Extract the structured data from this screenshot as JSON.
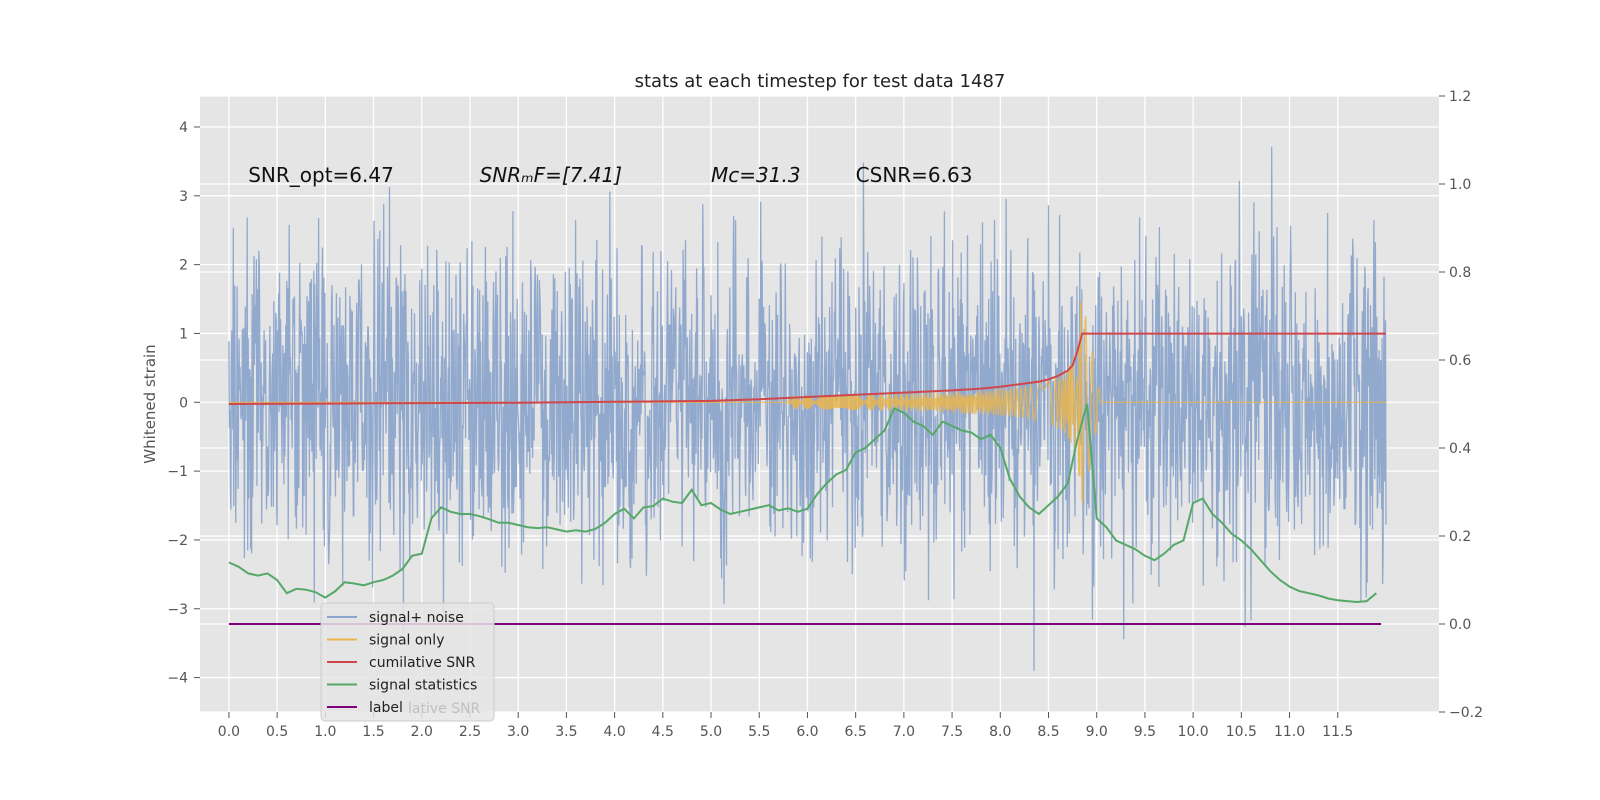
{
  "chart_data": {
    "type": "line",
    "title": "stats at each timestep for test data 1487",
    "xlabel": "",
    "ylabel": "Whitened strain",
    "xlim": [
      -0.3,
      12.55
    ],
    "ylim": [
      -4.5,
      4.45
    ],
    "y2lim": [
      -0.2,
      1.2
    ],
    "grid": true,
    "x_ticks": [
      0.0,
      0.5,
      1.0,
      1.5,
      2.0,
      2.5,
      3.0,
      3.5,
      4.0,
      4.5,
      5.0,
      5.5,
      6.0,
      6.5,
      7.0,
      7.5,
      8.0,
      8.5,
      9.0,
      9.5,
      10.0,
      10.5,
      11.0,
      11.5
    ],
    "x_tick_labels": [
      "0.0",
      "0.5",
      "1.0",
      "1.5",
      "2.0",
      "2.5",
      "3.0",
      "3.5",
      "4.0",
      "4.5",
      "5.0",
      "5.5",
      "6.0",
      "6.5",
      "7.0",
      "7.5",
      "8.0",
      "8.5",
      "9.0",
      "9.5",
      "10.0",
      "10.5",
      "11.0",
      "11.5"
    ],
    "y_ticks": [
      4,
      3,
      2,
      1,
      0,
      -1,
      -2,
      -3,
      -4
    ],
    "y_tick_labels": [
      "4",
      "3",
      "2",
      "1",
      "0",
      "−1",
      "−2",
      "−3",
      "−4"
    ],
    "y2_ticks": [
      1.2,
      1.0,
      0.8,
      0.6,
      0.4,
      0.2,
      0.0,
      -0.2
    ],
    "y2_tick_labels": [
      "1.2",
      "1.0",
      "0.8",
      "0.6",
      "0.4",
      "0.2",
      "0.0",
      "−0.2"
    ],
    "annotations": [
      {
        "name": "snr-opt",
        "text": "SNR_opt=6.47",
        "x": 0.2,
        "y": 3.2
      },
      {
        "name": "snr-mf",
        "text": "SNRₘF=[7.41]",
        "x": 2.6,
        "y": 3.2
      },
      {
        "name": "chirp-mass",
        "text": "Mᴄ=31.3",
        "x": 5.0,
        "y": 3.2
      },
      {
        "name": "csnr",
        "text": "CSNR=6.63",
        "x": 6.5,
        "y": 3.2
      }
    ],
    "series": [
      {
        "name": "signal+ noise",
        "axis": "left",
        "color": "#8da5cc",
        "style": "dense-noise",
        "x_range": [
          0.0,
          12.0
        ],
        "noise_sigma": 1.15,
        "clip": [
          -3.9,
          4.1
        ]
      },
      {
        "name": "signal only",
        "axis": "left",
        "color": "#e8b54d",
        "style": "chirp",
        "x_range": [
          0.0,
          12.0
        ],
        "merger_time": 8.85,
        "peak_amplitude": 1.55
      },
      {
        "name": "cumilative SNR",
        "axis": "right",
        "color": "#d0474b",
        "x": [
          0.0,
          1.0,
          2.0,
          3.0,
          4.0,
          5.0,
          5.5,
          6.0,
          6.5,
          7.0,
          7.5,
          7.8,
          8.0,
          8.2,
          8.4,
          8.5,
          8.6,
          8.7,
          8.75,
          8.8,
          8.85,
          9.0,
          10.0,
          11.0,
          12.0
        ],
        "values": [
          0.5,
          0.501,
          0.502,
          0.503,
          0.505,
          0.507,
          0.511,
          0.516,
          0.521,
          0.526,
          0.531,
          0.535,
          0.539,
          0.545,
          0.551,
          0.556,
          0.564,
          0.576,
          0.588,
          0.62,
          0.66,
          0.66,
          0.66,
          0.66,
          0.66
        ]
      },
      {
        "name": "signal statistics",
        "axis": "right",
        "color": "#55a868",
        "x": [
          0.0,
          0.1,
          0.2,
          0.3,
          0.4,
          0.5,
          0.6,
          0.7,
          0.8,
          0.9,
          1.0,
          1.1,
          1.2,
          1.3,
          1.4,
          1.5,
          1.6,
          1.7,
          1.8,
          1.9,
          2.0,
          2.1,
          2.2,
          2.3,
          2.4,
          2.5,
          2.6,
          2.7,
          2.8,
          2.9,
          3.0,
          3.1,
          3.2,
          3.3,
          3.4,
          3.5,
          3.6,
          3.7,
          3.8,
          3.9,
          4.0,
          4.1,
          4.2,
          4.3,
          4.4,
          4.5,
          4.6,
          4.7,
          4.8,
          4.9,
          5.0,
          5.1,
          5.2,
          5.3,
          5.4,
          5.5,
          5.6,
          5.7,
          5.8,
          5.9,
          6.0,
          6.1,
          6.2,
          6.3,
          6.4,
          6.5,
          6.6,
          6.7,
          6.8,
          6.9,
          7.0,
          7.1,
          7.2,
          7.3,
          7.4,
          7.5,
          7.6,
          7.7,
          7.8,
          7.9,
          8.0,
          8.1,
          8.2,
          8.3,
          8.4,
          8.5,
          8.6,
          8.7,
          8.8,
          8.9,
          9.0,
          9.1,
          9.2,
          9.3,
          9.4,
          9.5,
          9.6,
          9.7,
          9.8,
          9.9,
          10.0,
          10.1,
          10.2,
          10.3,
          10.4,
          10.5,
          10.6,
          10.7,
          10.8,
          10.9,
          11.0,
          11.1,
          11.2,
          11.3,
          11.4,
          11.5,
          11.6,
          11.7,
          11.8,
          11.9
        ],
        "values": [
          0.14,
          0.13,
          0.115,
          0.11,
          0.115,
          0.1,
          0.07,
          0.08,
          0.078,
          0.072,
          0.06,
          0.074,
          0.095,
          0.092,
          0.088,
          0.095,
          0.1,
          0.11,
          0.125,
          0.155,
          0.16,
          0.24,
          0.265,
          0.255,
          0.25,
          0.25,
          0.245,
          0.238,
          0.23,
          0.23,
          0.225,
          0.22,
          0.218,
          0.22,
          0.215,
          0.21,
          0.213,
          0.21,
          0.216,
          0.23,
          0.25,
          0.262,
          0.24,
          0.265,
          0.268,
          0.285,
          0.278,
          0.275,
          0.305,
          0.27,
          0.275,
          0.26,
          0.25,
          0.255,
          0.26,
          0.265,
          0.27,
          0.258,
          0.263,
          0.255,
          0.262,
          0.295,
          0.32,
          0.34,
          0.35,
          0.39,
          0.4,
          0.42,
          0.44,
          0.49,
          0.48,
          0.46,
          0.45,
          0.43,
          0.46,
          0.45,
          0.44,
          0.435,
          0.42,
          0.43,
          0.4,
          0.33,
          0.29,
          0.265,
          0.25,
          0.27,
          0.29,
          0.32,
          0.42,
          0.5,
          0.24,
          0.22,
          0.19,
          0.18,
          0.17,
          0.155,
          0.145,
          0.16,
          0.18,
          0.19,
          0.275,
          0.285,
          0.25,
          0.23,
          0.205,
          0.19,
          0.17,
          0.145,
          0.12,
          0.1,
          0.085,
          0.075,
          0.07,
          0.065,
          0.058,
          0.054,
          0.052,
          0.05,
          0.052,
          0.07
        ]
      },
      {
        "name": "label",
        "axis": "right",
        "color": "#800080",
        "x": [
          0.0,
          11.95
        ],
        "values": [
          0.0,
          0.0
        ]
      }
    ],
    "legend": {
      "placement": "lower-left",
      "entries": [
        "signal+ noise",
        "signal only",
        "cumilative SNR",
        "signal statistics",
        "label"
      ],
      "ghost_text": "lative SNR"
    }
  }
}
